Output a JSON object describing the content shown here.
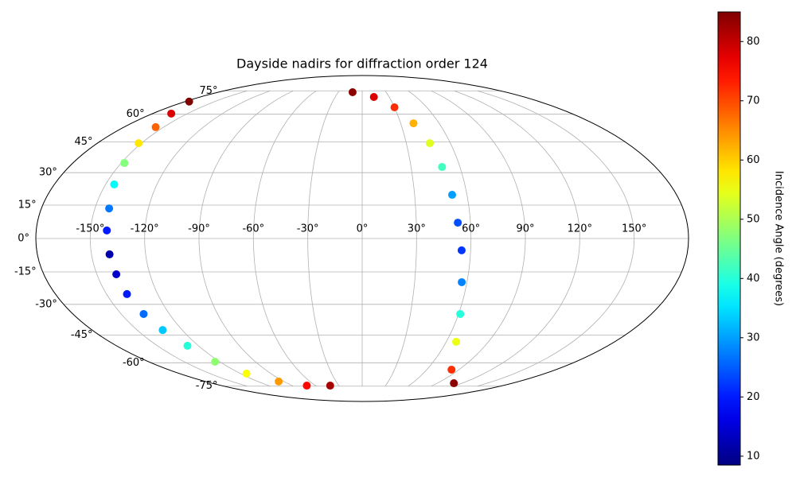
{
  "chart_data": {
    "type": "scatter",
    "projection": "mollweide",
    "title": "Dayside nadirs for diffraction order 124",
    "x": [
      -176,
      -164,
      -156,
      -152,
      -148,
      -145,
      -142,
      -141,
      -140,
      -139,
      -138,
      -136,
      -133,
      -128,
      -124,
      -114,
      -96,
      -71,
      -41,
      -12,
      13,
      30,
      40,
      46,
      49,
      51.5,
      53,
      55,
      57,
      61,
      67,
      83,
      110
    ],
    "y": [
      67.7,
      60.4,
      52.8,
      44.4,
      34.6,
      24.5,
      13.5,
      3.6,
      -7.1,
      -16.1,
      -25.2,
      -34.6,
      -42.5,
      -50.6,
      -59.4,
      -66.5,
      -71.7,
      -74.6,
      -74.6,
      74.0,
      70.7,
      64.1,
      54.9,
      44.4,
      32.7,
      19.7,
      7.1,
      -5.3,
      -19.7,
      -34.6,
      -48.5,
      -64.1,
      -72.9
    ],
    "values": [
      85,
      78,
      68,
      58,
      47,
      37,
      27,
      20,
      12,
      14,
      20,
      26,
      33,
      40,
      48,
      56,
      64,
      75,
      82,
      84,
      78,
      72,
      62,
      54,
      42,
      30,
      24,
      22,
      28,
      40,
      55,
      72,
      84
    ],
    "xticks": [
      {
        "value": -150,
        "label": "-150°"
      },
      {
        "value": -120,
        "label": "-120°"
      },
      {
        "value": -90,
        "label": "-90°"
      },
      {
        "value": -60,
        "label": "-60°"
      },
      {
        "value": -30,
        "label": "-30°"
      },
      {
        "value": 0,
        "label": "0°"
      },
      {
        "value": 30,
        "label": "30°"
      },
      {
        "value": 60,
        "label": "60°"
      },
      {
        "value": 90,
        "label": "90°"
      },
      {
        "value": 120,
        "label": "120°"
      },
      {
        "value": 150,
        "label": "150°"
      }
    ],
    "yticks": [
      {
        "value": -75,
        "label": "-75°"
      },
      {
        "value": -60,
        "label": "-60°"
      },
      {
        "value": -45,
        "label": "-45°"
      },
      {
        "value": -30,
        "label": "-30°"
      },
      {
        "value": -15,
        "label": "-15°"
      },
      {
        "value": 0,
        "label": "0°"
      },
      {
        "value": 15,
        "label": "15°"
      },
      {
        "value": 30,
        "label": "30°"
      },
      {
        "value": 45,
        "label": "45°"
      },
      {
        "value": 60,
        "label": "60°"
      },
      {
        "value": 75,
        "label": "75°"
      }
    ],
    "grid": true,
    "colormap": "jet",
    "colorbar": {
      "label": "Incidence Angle (degrees)",
      "clim": [
        8.5,
        85
      ],
      "ticks": [
        10,
        20,
        30,
        40,
        50,
        60,
        70,
        80
      ]
    }
  }
}
